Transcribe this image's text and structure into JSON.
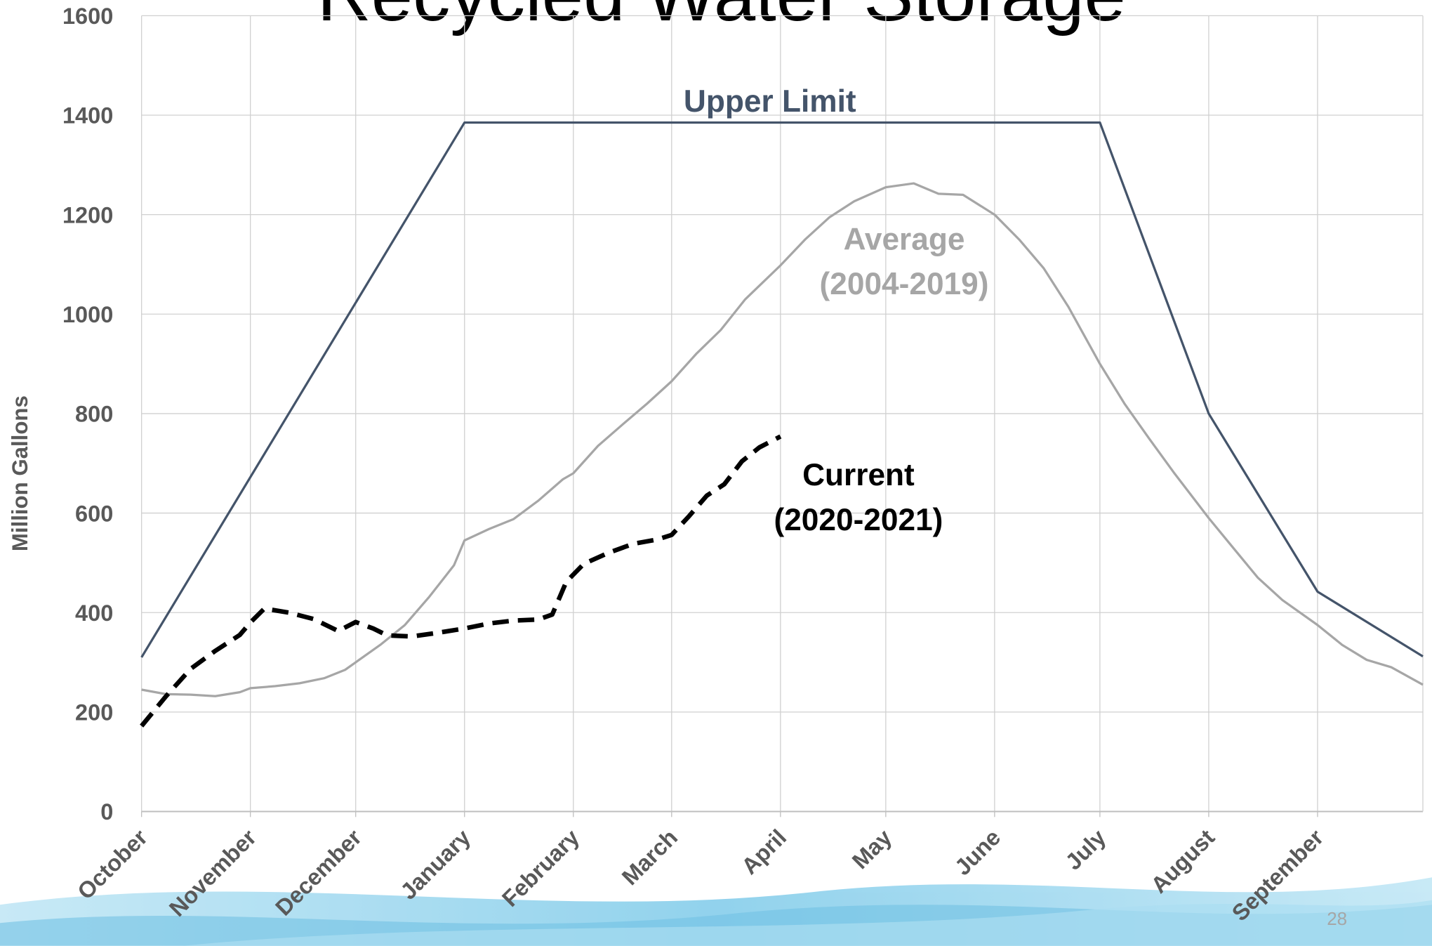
{
  "chart_data": {
    "type": "line",
    "title": "Recycled Water Storage",
    "y_label": "Million Gallons",
    "page_number": "28",
    "xlim": [
      0,
      365
    ],
    "xticks": [
      {
        "value": 0,
        "label": "October"
      },
      {
        "value": 31,
        "label": "November"
      },
      {
        "value": 61,
        "label": "December"
      },
      {
        "value": 92,
        "label": "January"
      },
      {
        "value": 123,
        "label": "February"
      },
      {
        "value": 151,
        "label": "March"
      },
      {
        "value": 182,
        "label": "April"
      },
      {
        "value": 212,
        "label": "May"
      },
      {
        "value": 243,
        "label": "June"
      },
      {
        "value": 273,
        "label": "July"
      },
      {
        "value": 304,
        "label": "August"
      },
      {
        "value": 335,
        "label": "September"
      }
    ],
    "ylim": [
      0,
      1600
    ],
    "yticks": [
      0,
      200,
      400,
      600,
      800,
      1000,
      1200,
      1400,
      1600
    ],
    "grid": true,
    "series": [
      {
        "label": [
          "Upper Limit"
        ],
        "color": "#44546a",
        "dashed": false,
        "x": [
          0,
          92,
          273,
          304,
          335,
          365
        ],
        "values": [
          310,
          1385,
          1385,
          800,
          442,
          312
        ]
      },
      {
        "label": [
          "Average",
          "(2004-2019)"
        ],
        "color": "#a6a6a6",
        "dashed": false,
        "x": [
          0,
          7,
          14,
          21,
          28,
          31,
          38,
          45,
          52,
          58,
          61,
          68,
          75,
          82,
          89,
          92,
          99,
          106,
          113,
          120,
          123,
          130,
          137,
          144,
          151,
          158,
          165,
          172,
          182,
          189,
          196,
          203,
          212,
          220,
          227,
          234,
          243,
          250,
          257,
          264,
          273,
          280,
          287,
          294,
          304,
          311,
          318,
          325,
          335,
          342,
          349,
          356,
          365
        ],
        "values": [
          245,
          236,
          235,
          232,
          240,
          248,
          252,
          258,
          268,
          285,
          300,
          335,
          375,
          432,
          495,
          545,
          568,
          588,
          625,
          668,
          680,
          735,
          778,
          820,
          865,
          920,
          968,
          1030,
          1098,
          1150,
          1195,
          1227,
          1255,
          1263,
          1242,
          1240,
          1200,
          1150,
          1092,
          1015,
          900,
          820,
          750,
          682,
          590,
          530,
          470,
          425,
          375,
          335,
          305,
          290,
          255
        ]
      },
      {
        "label": [
          "Current",
          "(2020-2021)"
        ],
        "color": "#000000",
        "dashed": true,
        "x": [
          0,
          7,
          14,
          21,
          28,
          31,
          35,
          42,
          49,
          56,
          61,
          66,
          70,
          77,
          84,
          92,
          99,
          106,
          113,
          117,
          121,
          126,
          133,
          140,
          147,
          151,
          156,
          161,
          166,
          171,
          176,
          182
        ],
        "values": [
          172,
          232,
          287,
          323,
          355,
          380,
          408,
          400,
          387,
          363,
          381,
          368,
          354,
          352,
          359,
          368,
          378,
          384,
          386,
          396,
          462,
          498,
          520,
          538,
          547,
          556,
          594,
          635,
          658,
          704,
          732,
          754
        ]
      }
    ]
  }
}
